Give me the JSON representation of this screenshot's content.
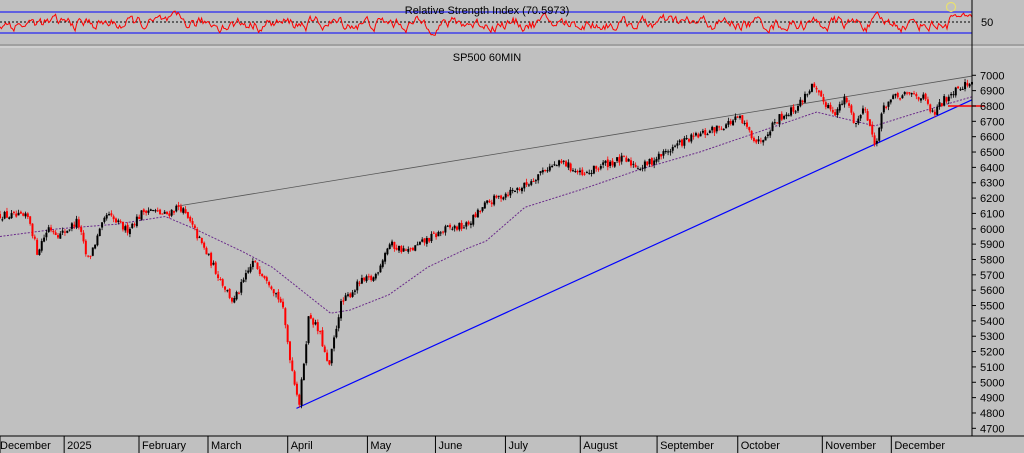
{
  "chart_data": [
    {
      "type": "line",
      "title": "Relative Strength Index (70.5973)",
      "y_ticks": [
        50
      ],
      "ylim": [
        18,
        96
      ],
      "bands": [
        70,
        30
      ],
      "midline": 50,
      "last_value": 70.5973,
      "colors": {
        "line": "#ff0000",
        "bands": "#0000ff",
        "midline": "#000000",
        "marker": "#ffff66"
      }
    },
    {
      "type": "candlestick",
      "title": "SP500 60MIN",
      "ylim": [
        4650,
        7080
      ],
      "y_ticks": [
        4700,
        4800,
        4900,
        5000,
        5100,
        5200,
        5300,
        5400,
        5500,
        5600,
        5700,
        5800,
        5900,
        6000,
        6100,
        6200,
        6300,
        6400,
        6500,
        6600,
        6700,
        6800,
        6900,
        7000
      ],
      "x_labels": [
        "December",
        "2025",
        "February",
        "March",
        "April",
        "May",
        "June",
        "July",
        "August",
        "September",
        "October",
        "November",
        "December"
      ],
      "x_label_positions": [
        0,
        0.066,
        0.143,
        0.214,
        0.296,
        0.378,
        0.448,
        0.52,
        0.597,
        0.676,
        0.759,
        0.846,
        0.917
      ],
      "price_path": [
        [
          0.0,
          6090
        ],
        [
          0.03,
          6070
        ],
        [
          0.038,
          5850
        ],
        [
          0.05,
          6010
        ],
        [
          0.062,
          5960
        ],
        [
          0.08,
          6050
        ],
        [
          0.09,
          5790
        ],
        [
          0.11,
          6090
        ],
        [
          0.13,
          5990
        ],
        [
          0.15,
          6130
        ],
        [
          0.17,
          6090
        ],
        [
          0.185,
          6150
        ],
        [
          0.2,
          5990
        ],
        [
          0.22,
          5750
        ],
        [
          0.24,
          5520
        ],
        [
          0.26,
          5780
        ],
        [
          0.275,
          5680
        ],
        [
          0.29,
          5510
        ],
        [
          0.3,
          5100
        ],
        [
          0.308,
          4860
        ],
        [
          0.318,
          5450
        ],
        [
          0.33,
          5300
        ],
        [
          0.338,
          5080
        ],
        [
          0.35,
          5500
        ],
        [
          0.37,
          5650
        ],
        [
          0.385,
          5680
        ],
        [
          0.4,
          5900
        ],
        [
          0.42,
          5850
        ],
        [
          0.44,
          5930
        ],
        [
          0.46,
          6000
        ],
        [
          0.48,
          6020
        ],
        [
          0.5,
          6160
        ],
        [
          0.52,
          6230
        ],
        [
          0.54,
          6280
        ],
        [
          0.56,
          6390
        ],
        [
          0.58,
          6430
        ],
        [
          0.6,
          6340
        ],
        [
          0.62,
          6420
        ],
        [
          0.64,
          6450
        ],
        [
          0.66,
          6400
        ],
        [
          0.68,
          6480
        ],
        [
          0.7,
          6560
        ],
        [
          0.72,
          6610
        ],
        [
          0.74,
          6660
        ],
        [
          0.76,
          6720
        ],
        [
          0.78,
          6560
        ],
        [
          0.8,
          6720
        ],
        [
          0.82,
          6790
        ],
        [
          0.835,
          6930
        ],
        [
          0.845,
          6840
        ],
        [
          0.86,
          6760
        ],
        [
          0.87,
          6850
        ],
        [
          0.88,
          6680
        ],
        [
          0.89,
          6800
        ],
        [
          0.9,
          6540
        ],
        [
          0.91,
          6810
        ],
        [
          0.92,
          6850
        ],
        [
          0.94,
          6880
        ],
        [
          0.95,
          6850
        ],
        [
          0.96,
          6740
        ],
        [
          0.97,
          6830
        ],
        [
          0.985,
          6930
        ],
        [
          1.0,
          6945
        ]
      ],
      "moving_average": [
        [
          0.0,
          5950
        ],
        [
          0.06,
          6000
        ],
        [
          0.12,
          6030
        ],
        [
          0.17,
          6080
        ],
        [
          0.2,
          6000
        ],
        [
          0.25,
          5850
        ],
        [
          0.28,
          5750
        ],
        [
          0.3,
          5650
        ],
        [
          0.32,
          5550
        ],
        [
          0.34,
          5450
        ],
        [
          0.36,
          5470
        ],
        [
          0.4,
          5570
        ],
        [
          0.44,
          5750
        ],
        [
          0.48,
          5870
        ],
        [
          0.5,
          5920
        ],
        [
          0.54,
          6140
        ],
        [
          0.6,
          6260
        ],
        [
          0.66,
          6390
        ],
        [
          0.72,
          6500
        ],
        [
          0.78,
          6630
        ],
        [
          0.84,
          6760
        ],
        [
          0.9,
          6670
        ],
        [
          0.94,
          6750
        ],
        [
          1.0,
          6860
        ]
      ],
      "trendlines": [
        {
          "from": [
            0.185,
            6150
          ],
          "to": [
            1.0,
            6995
          ],
          "color": "#555555"
        },
        {
          "from": [
            0.305,
            4830
          ],
          "to": [
            1.0,
            6840
          ],
          "color": "#0000ff"
        }
      ],
      "horizontal_line": {
        "value": 6800,
        "color": "#ff0000"
      },
      "colors": {
        "up": "#000000",
        "down": "#ff0000",
        "ma": "#6a2a8a",
        "background": "#c0c0c0"
      }
    }
  ]
}
